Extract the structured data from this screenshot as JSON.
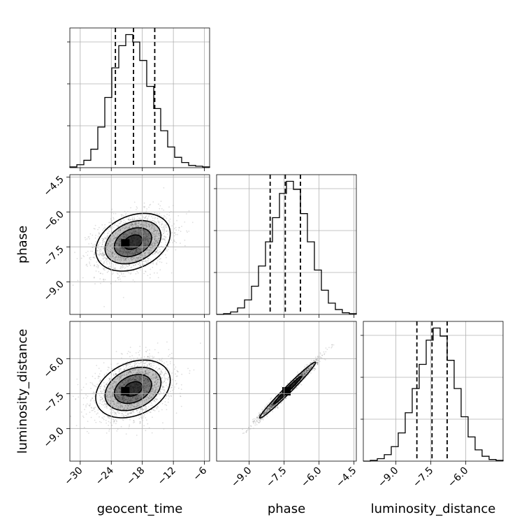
{
  "chart_data": {
    "type": "corner",
    "parameters": [
      "geocent_time",
      "phase",
      "luminosity_distance"
    ],
    "axes": {
      "geocent_time": {
        "range": [
          -32,
          -5
        ],
        "ticks": [
          -30,
          -24,
          -18,
          -12,
          -6
        ],
        "tick_labels": [
          "−30",
          "−24",
          "−18",
          "−12",
          "−6"
        ]
      },
      "phase": {
        "range": [
          -10.4,
          -4.4
        ],
        "ticks": [
          -9.0,
          -7.5,
          -6.0,
          -4.5
        ],
        "tick_labels": [
          "−9.0",
          "−7.5",
          "−6.0",
          "−4.5"
        ]
      },
      "luminosity_distance": {
        "range": [
          -10.4,
          -4.4
        ],
        "ticks": [
          -9.0,
          -7.5,
          -6.0
        ],
        "tick_labels": [
          "−9.0",
          "−7.5",
          "−6.0"
        ]
      }
    },
    "marginals": [
      {
        "parameter": "geocent_time",
        "bin_edges": [
          -32,
          -30.65,
          -29.3,
          -27.95,
          -26.6,
          -25.25,
          -23.9,
          -22.55,
          -21.2,
          -19.85,
          -18.5,
          -17.15,
          -15.8,
          -14.45,
          -13.1,
          -11.75,
          -10.4,
          -9.05,
          -7.7,
          -6.35,
          -5
        ],
        "counts": [
          1,
          4,
          10,
          25,
          55,
          95,
          135,
          165,
          180,
          170,
          145,
          110,
          80,
          50,
          28,
          14,
          7,
          3,
          2,
          1
        ],
        "quantiles": [
          -23.2,
          -19.7,
          -15.6
        ]
      },
      {
        "parameter": "phase",
        "bin_edges": [
          -10.4,
          -10.1,
          -9.8,
          -9.5,
          -9.2,
          -8.9,
          -8.6,
          -8.3,
          -8.0,
          -7.7,
          -7.4,
          -7.1,
          -6.8,
          -6.5,
          -6.2,
          -5.9,
          -5.6,
          -5.3,
          -5.0,
          -4.7,
          -4.4
        ],
        "counts": [
          0,
          1,
          3,
          8,
          18,
          35,
          60,
          90,
          120,
          150,
          165,
          155,
          125,
          90,
          55,
          30,
          14,
          6,
          2,
          1
        ],
        "quantiles": [
          -8.1,
          -7.45,
          -6.8
        ]
      },
      {
        "parameter": "luminosity_distance",
        "bin_edges": [
          -10.4,
          -10.1,
          -9.8,
          -9.5,
          -9.2,
          -8.9,
          -8.6,
          -8.3,
          -8.0,
          -7.7,
          -7.4,
          -7.1,
          -6.8,
          -6.5,
          -6.2,
          -5.9,
          -5.6,
          -5.3,
          -5.0,
          -4.7,
          -4.4
        ],
        "counts": [
          0,
          1,
          3,
          8,
          18,
          35,
          60,
          90,
          120,
          150,
          165,
          155,
          125,
          90,
          55,
          30,
          14,
          6,
          2,
          1
        ],
        "quantiles": [
          -8.1,
          -7.45,
          -6.8
        ]
      }
    ],
    "joint": [
      {
        "x": "geocent_time",
        "y": "phase",
        "center": [
          -19.8,
          -7.3
        ],
        "sigma": [
          3.6,
          0.62
        ],
        "rho": 0.3,
        "contour_radii": [
          0.5,
          1.0,
          1.5,
          2.0
        ],
        "peak": [
          -21.3,
          -7.35
        ]
      },
      {
        "x": "geocent_time",
        "y": "luminosity_distance",
        "center": [
          -19.8,
          -7.3
        ],
        "sigma": [
          3.6,
          0.62
        ],
        "rho": 0.3,
        "contour_radii": [
          0.5,
          1.0,
          1.5,
          2.0
        ],
        "peak": [
          -21.3,
          -7.4
        ]
      },
      {
        "x": "phase",
        "y": "luminosity_distance",
        "center": [
          -7.35,
          -7.35
        ],
        "sigma": [
          0.6,
          0.6
        ],
        "rho": 0.985,
        "contour_radii": [
          1.0,
          2.0
        ],
        "peak": [
          -7.4,
          -7.4
        ]
      }
    ],
    "grid": true,
    "colors": {
      "line": "#000000",
      "grid": "#b0b0b0",
      "points": "#000000"
    }
  }
}
